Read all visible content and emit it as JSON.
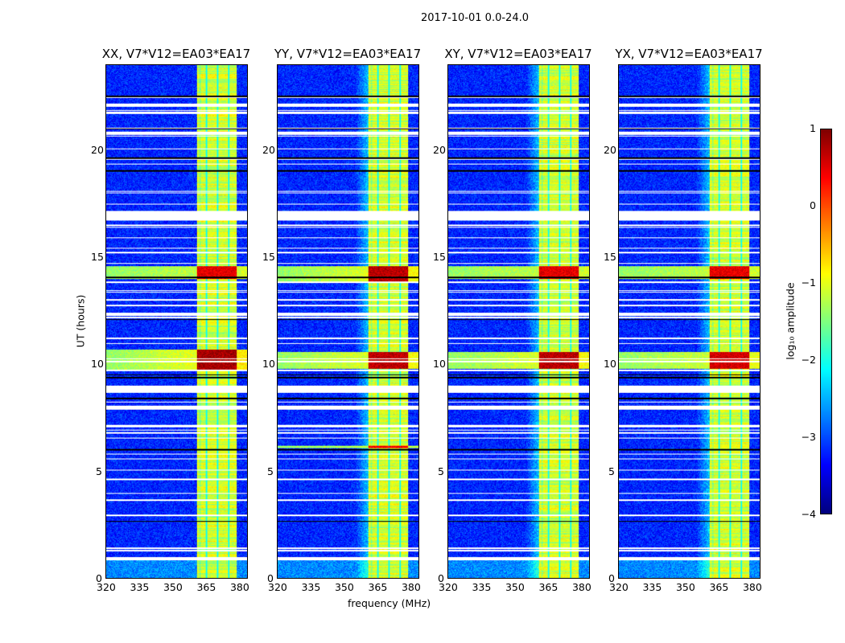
{
  "title": "2017-10-01 0.0-24.0",
  "chart_data": {
    "type": "heatmap",
    "xlabel": "frequency (MHz)",
    "ylabel": "UT (hours)",
    "xlim": [
      320,
      384
    ],
    "ylim": [
      0,
      24
    ],
    "xticks": [
      "320",
      "335",
      "350",
      "365",
      "380"
    ],
    "yticks": [
      "0",
      "5",
      "10",
      "15",
      "20"
    ],
    "panels": [
      {
        "title": "XX, V7*V12=EA03*EA17",
        "rfi_rows": [
          [
            9.7,
            10.7,
            0.6
          ],
          [
            14.0,
            14.6,
            0.3
          ]
        ]
      },
      {
        "title": "YY, V7*V12=EA03*EA17",
        "rfi_rows": [
          [
            9.8,
            10.6,
            0.5
          ],
          [
            13.9,
            14.6,
            0.5
          ],
          [
            6.1,
            6.2,
            0.2
          ]
        ]
      },
      {
        "title": "XY, V7*V12=EA03*EA17",
        "rfi_rows": [
          [
            9.8,
            10.6,
            0.5
          ],
          [
            14.0,
            14.6,
            0.3
          ]
        ]
      },
      {
        "title": "YX, V7*V12=EA03*EA17",
        "rfi_rows": [
          [
            9.8,
            10.6,
            0.4
          ],
          [
            14.0,
            14.6,
            0.3
          ]
        ]
      }
    ],
    "band_MHz": [
      361,
      379
    ],
    "band_gaps_MHz": [
      365.5,
      370.5,
      375.5
    ],
    "flagged_gaps_hours": [
      [
        0.85,
        1.0
      ],
      [
        8.7,
        8.9
      ],
      [
        16.8,
        17.2
      ],
      [
        20.75,
        20.9
      ]
    ],
    "colorbar": {
      "label": "log₁₀ amplitude",
      "range": [
        -4,
        1
      ],
      "ticks": [
        "1",
        "0",
        "−1",
        "−2",
        "−3",
        "−4"
      ],
      "colormap": "jet"
    }
  }
}
